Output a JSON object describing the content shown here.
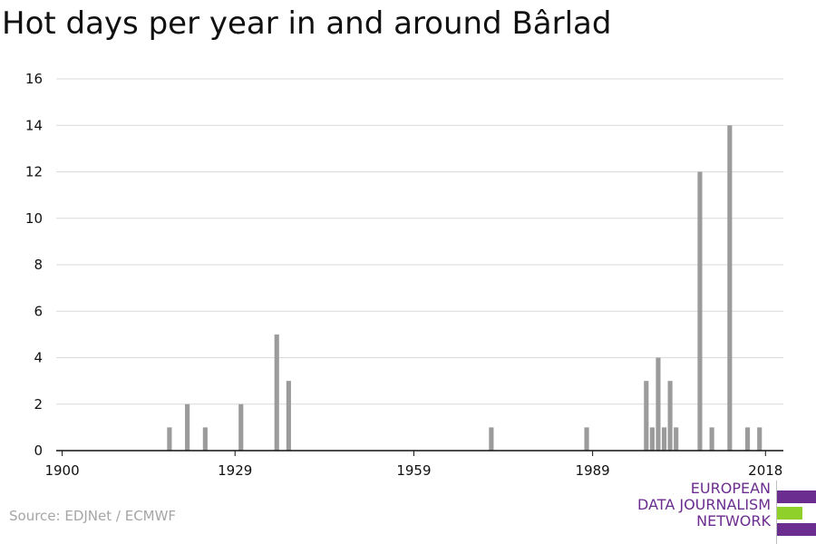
{
  "chart_data": {
    "type": "bar",
    "title": "Hot days per year in and around Bârlad",
    "xlabel": "",
    "ylabel": "",
    "xlim": [
      1899,
      2021
    ],
    "ylim": [
      0,
      16
    ],
    "y_ticks": [
      0,
      2,
      4,
      6,
      8,
      10,
      12,
      14,
      16
    ],
    "x_ticks": [
      1900,
      1929,
      1959,
      1989,
      2018
    ],
    "grid": "horizontal",
    "bar_color": "#9b9b9b",
    "points": [
      {
        "x": 1918,
        "y": 1
      },
      {
        "x": 1921,
        "y": 2
      },
      {
        "x": 1924,
        "y": 1
      },
      {
        "x": 1930,
        "y": 2
      },
      {
        "x": 1936,
        "y": 5
      },
      {
        "x": 1938,
        "y": 3
      },
      {
        "x": 1972,
        "y": 1
      },
      {
        "x": 1988,
        "y": 1
      },
      {
        "x": 1998,
        "y": 3
      },
      {
        "x": 1999,
        "y": 1
      },
      {
        "x": 2000,
        "y": 4
      },
      {
        "x": 2001,
        "y": 1
      },
      {
        "x": 2002,
        "y": 3
      },
      {
        "x": 2003,
        "y": 1
      },
      {
        "x": 2007,
        "y": 12
      },
      {
        "x": 2009,
        "y": 1
      },
      {
        "x": 2012,
        "y": 14
      },
      {
        "x": 2015,
        "y": 1
      },
      {
        "x": 2017,
        "y": 1
      }
    ]
  },
  "source": "Source: EDJNet / ECMWF",
  "logo": {
    "lines": [
      "EUROPEAN",
      "DATA JOURNALISM",
      "NETWORK"
    ],
    "color_primary": "#6b2d8f",
    "color_accent": "#8fd12a"
  }
}
